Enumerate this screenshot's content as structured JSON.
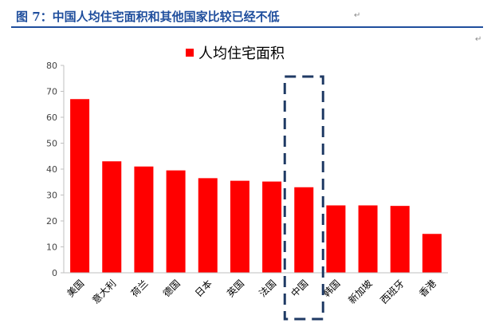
{
  "figure": {
    "title": "图 7：中国人均住宅面积和其他国家比较已经不低",
    "para_mark": "↵"
  },
  "colors": {
    "bar": "#ff0000",
    "title": "#1f4e9d",
    "highlight": "#1f3a64",
    "axis": "#bfbfbf"
  },
  "chart_data": {
    "type": "bar",
    "categories": [
      "美国",
      "意大利",
      "荷兰",
      "德国",
      "日本",
      "英国",
      "法国",
      "中国",
      "韩国",
      "新加坡",
      "西班牙",
      "香港"
    ],
    "series": [
      {
        "name": "人均住宅面积",
        "values": [
          67,
          43,
          41,
          39.5,
          36.5,
          35.5,
          35.2,
          33,
          26,
          26,
          25.8,
          15
        ]
      }
    ],
    "yticks": [
      0,
      10,
      20,
      30,
      40,
      50,
      60,
      70,
      80
    ],
    "ylim": [
      0,
      80
    ],
    "legend_position": "top",
    "highlight_category": "中国",
    "grid": false
  }
}
